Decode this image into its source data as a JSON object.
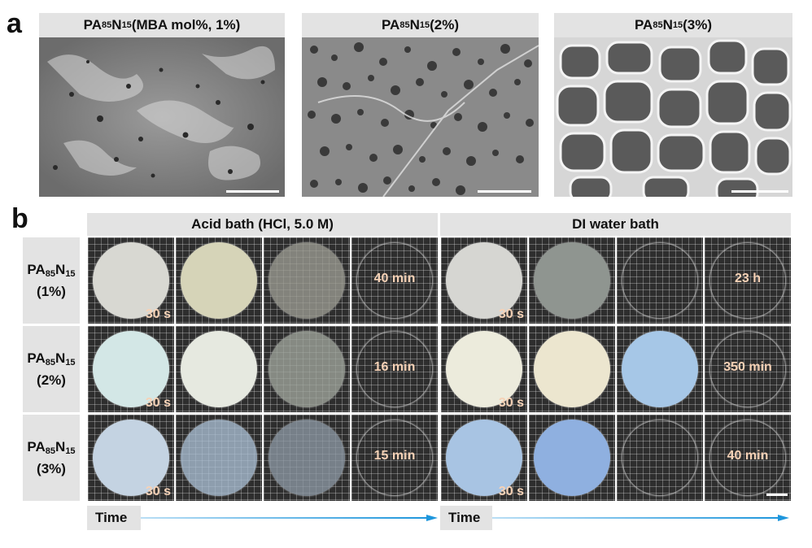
{
  "panel_a": {
    "letter": "a",
    "images": [
      {
        "title_base": "PA",
        "sub1": "85",
        "mid": "N",
        "sub2": "15",
        "suffix": " (MBA mol%, 1%)",
        "texture": "dense-smooth-sem"
      },
      {
        "title_base": "PA",
        "sub1": "85",
        "mid": "N",
        "sub2": "15",
        "suffix": " (2%)",
        "texture": "small-pore-sem"
      },
      {
        "title_base": "PA",
        "sub1": "85",
        "mid": "N",
        "sub2": "15",
        "suffix": " (3%)",
        "texture": "large-pore-sem"
      }
    ]
  },
  "panel_b": {
    "letter": "b",
    "groups": [
      {
        "title": "Acid bath (HCl, 5.0 M)"
      },
      {
        "title": "DI water bath"
      }
    ],
    "rows": [
      {
        "label_base": "PA",
        "sub1": "85",
        "mid": "N",
        "sub2": "15",
        "label_pct": "(1%)",
        "acid_start": "30 s",
        "acid_end": "40 min",
        "water_start": "30 s",
        "water_end": "23 h",
        "acid_colors": [
          "#d8d8d2",
          "#d6d4b8",
          "#9c9c92",
          "#55554f"
        ],
        "water_colors": [
          "#d6d6d2",
          "#8f9590",
          "#4a4a47",
          "#3c3c3a"
        ]
      },
      {
        "label_base": "PA",
        "sub1": "85",
        "mid": "N",
        "sub2": "15",
        "label_pct": "(2%)",
        "acid_start": "30 s",
        "acid_end": "16 min",
        "water_start": "30 s",
        "water_end": "350 min",
        "acid_colors": [
          "#d3e7e6",
          "#e6e9e0",
          "#9fa59c",
          "#444441"
        ],
        "water_colors": [
          "#ecebdc",
          "#ece6cf",
          "#a6c7e7",
          "#3f3f3d"
        ]
      },
      {
        "label_base": "PA",
        "sub1": "85",
        "mid": "N",
        "sub2": "15",
        "label_pct": "(3%)",
        "acid_start": "30 s",
        "acid_end": "15 min",
        "water_start": "30 s",
        "water_end": "40 min",
        "acid_colors": [
          "#c4d3e2",
          "#aabed3",
          "#8c98a3",
          "#4a4b4c"
        ],
        "water_colors": [
          "#a8c4e3",
          "#8fb0e0",
          "#4b4d52",
          "#3a3a3a"
        ]
      }
    ],
    "time_label": "Time"
  }
}
